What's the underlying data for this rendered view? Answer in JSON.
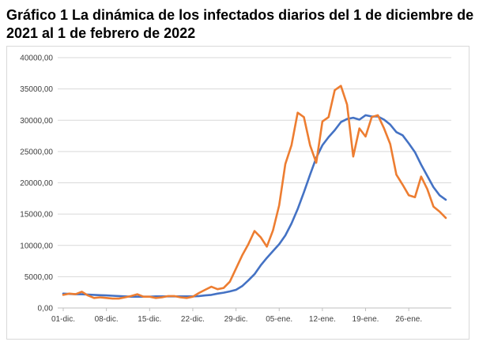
{
  "title": "Gráfico 1 La dinámica de los infectados diarios del 1 de diciembre de 2021 al 1 de febrero de 2022",
  "chart_data": {
    "type": "line",
    "title": "",
    "xlabel": "",
    "ylabel": "",
    "ylim": [
      0,
      40000
    ],
    "yticks": [
      0,
      5000,
      10000,
      15000,
      20000,
      25000,
      30000,
      35000,
      40000
    ],
    "ytick_labels": [
      "0,00",
      "5000,00",
      "10000,00",
      "15000,00",
      "20000,00",
      "25000,00",
      "30000,00",
      "35000,00",
      "40000,00"
    ],
    "xtick_labels": [
      "01-dic.",
      "08-dic.",
      "15-dic.",
      "22-dic.",
      "29-dic.",
      "05-ene.",
      "12-ene.",
      "19-ene.",
      "26-ene."
    ],
    "xtick_interval_days": 7,
    "grid": true,
    "legend": "none",
    "series": [
      {
        "color": "#4472c4",
        "values": [
          2300,
          2250,
          2200,
          2200,
          2150,
          2100,
          2050,
          2000,
          1950,
          1900,
          1850,
          1800,
          1800,
          1800,
          1800,
          1850,
          1850,
          1850,
          1850,
          1850,
          1850,
          1850,
          1900,
          2000,
          2100,
          2300,
          2450,
          2650,
          2900,
          3500,
          4400,
          5400,
          6800,
          8000,
          9100,
          10200,
          11600,
          13500,
          15800,
          18500,
          21300,
          24000,
          26000,
          27300,
          28400,
          29700,
          30200,
          30400,
          30100,
          30800,
          30600,
          30600,
          30100,
          29300,
          28100,
          27600,
          26300,
          24900,
          22900,
          21100,
          19300,
          18000,
          17300
        ]
      },
      {
        "color": "#ed7d31",
        "values": [
          2100,
          2300,
          2200,
          2600,
          2000,
          1600,
          1700,
          1600,
          1500,
          1500,
          1700,
          1900,
          2200,
          1800,
          1800,
          1600,
          1700,
          1900,
          1900,
          1700,
          1600,
          1800,
          2400,
          2900,
          3400,
          3000,
          3200,
          4200,
          6300,
          8400,
          10200,
          12300,
          11300,
          9800,
          12400,
          16400,
          23000,
          26000,
          31200,
          30500,
          26000,
          23200,
          29800,
          30500,
          34800,
          35500,
          32500,
          24200,
          28700,
          27400,
          30500,
          30800,
          28700,
          26200,
          21300,
          19700,
          18000,
          17700,
          21000,
          19000,
          16200,
          15400,
          14400
        ]
      }
    ]
  }
}
